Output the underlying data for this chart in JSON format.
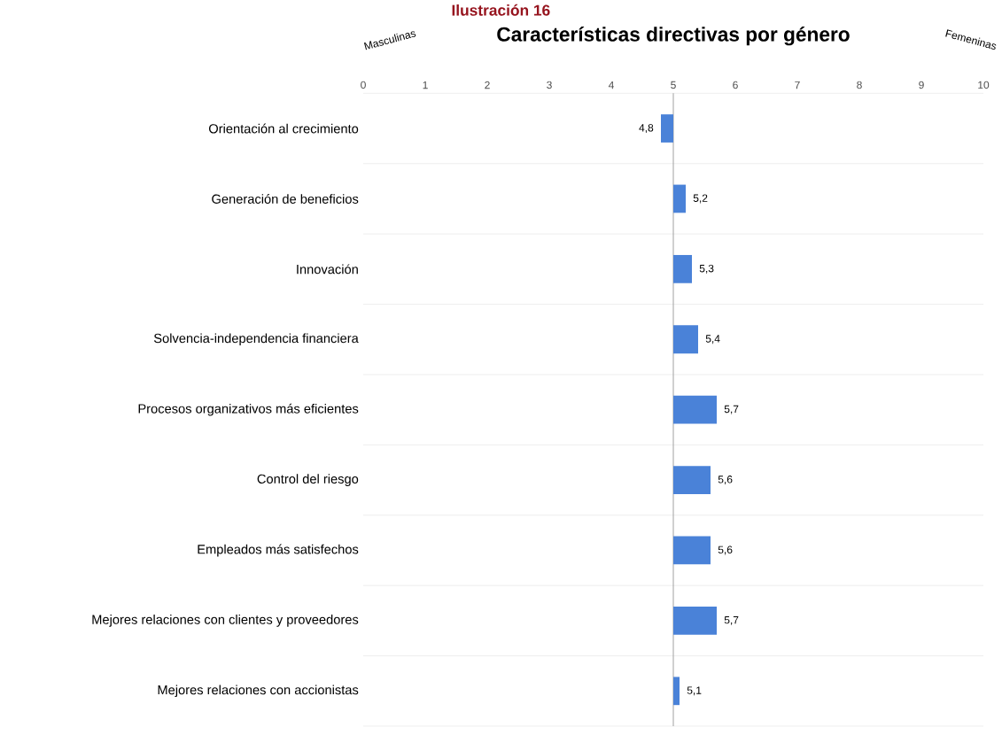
{
  "chart_data": {
    "type": "bar",
    "orientation": "horizontal",
    "title": "Características directivas por género",
    "annotations": [
      "Ilustración 16",
      "Masculinas",
      "Femeninas"
    ],
    "categories": [
      "Orientación al crecimiento",
      "Generación de beneficios",
      "Innovación",
      "Solvencia-independencia financiera",
      "Procesos organizativos más eficientes",
      "Control del riesgo",
      "Empleados más satisfechos",
      "Mejores relaciones con clientes y proveedores",
      "Mejores relaciones con accionistas"
    ],
    "base": [
      5,
      5,
      5,
      5,
      5,
      5,
      5,
      5,
      5
    ],
    "values": [
      -0.2,
      0.2,
      0.3,
      0.4,
      0.7,
      0.6,
      0.6,
      0.7,
      0.1
    ],
    "value_labels": [
      "4,8",
      "5,2",
      "5,3",
      "5,4",
      "5,7",
      "5,6",
      "5,6",
      "5,7",
      "5,1"
    ],
    "color": "#4a82d8",
    "xlim": [
      0,
      10
    ],
    "xticks": [
      0,
      1,
      2,
      3,
      4,
      5,
      6,
      7,
      8,
      9,
      10
    ],
    "ref_lines": [
      {
        "axis": "x",
        "value": 5,
        "color": "#a6a6a6"
      }
    ],
    "grid": "y"
  }
}
